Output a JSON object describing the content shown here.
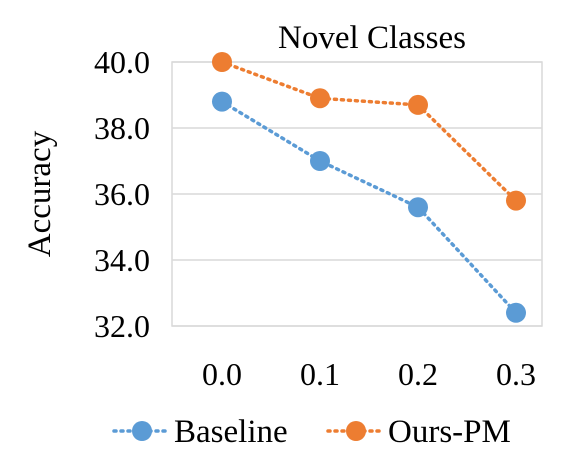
{
  "chart_data": {
    "type": "line",
    "title": "Novel Classes",
    "xlabel": "",
    "ylabel": "Accuracy",
    "categories": [
      "0.0",
      "0.1",
      "0.2",
      "0.3"
    ],
    "yticks": [
      "32.0",
      "34.0",
      "36.0",
      "38.0",
      "40.0"
    ],
    "ylim": [
      32,
      40
    ],
    "grid": true,
    "legend_position": "bottom",
    "series": [
      {
        "name": "Baseline",
        "values": [
          38.8,
          37.0,
          35.6,
          32.4
        ],
        "color": "#5b9bd5",
        "line_style": "dotted",
        "marker": "circle"
      },
      {
        "name": "Ours-PM",
        "values": [
          40.0,
          38.9,
          38.7,
          35.8
        ],
        "color": "#ed7d31",
        "line_style": "dotted",
        "marker": "circle"
      }
    ]
  }
}
